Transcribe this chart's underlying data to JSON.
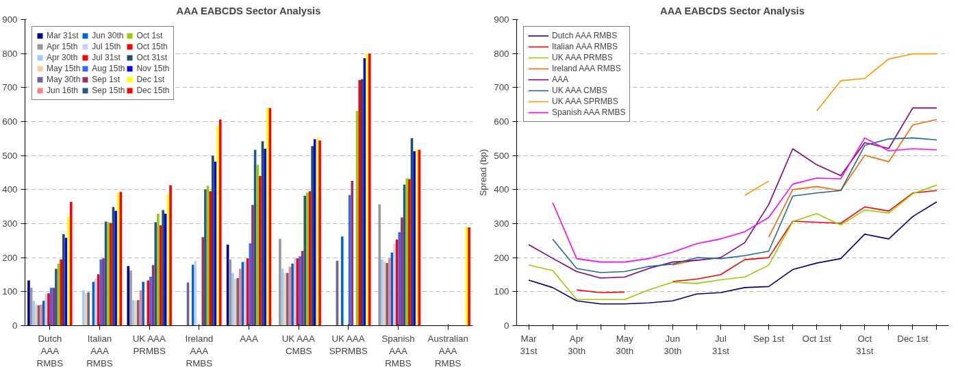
{
  "chart_data": [
    {
      "type": "bar",
      "title": "AAA EABCDS Sector Analysis",
      "categories": [
        "Dutch AAA RMBS",
        "Italian AAA RMBS",
        "UK AAA PRMBS",
        "Ireland AAA RMBS",
        "AAA",
        "UK AAA CMBS",
        "UK AAA SPRMBS",
        "Spanish AAA RMBS",
        "Australian AAA RMBS"
      ],
      "ylim": [
        0,
        900
      ],
      "yticks": [
        0,
        100,
        200,
        300,
        400,
        500,
        600,
        700,
        800,
        900
      ],
      "grid": "y",
      "legend": "top left",
      "series": [
        {
          "name": "Mar 31st",
          "color": "#000080",
          "values": [
            133,
            null,
            175,
            null,
            238,
            null,
            null,
            null,
            null
          ]
        },
        {
          "name": "Apr 15th",
          "color": "#999999",
          "values": [
            111,
            null,
            162,
            null,
            195,
            255,
            null,
            357,
            null
          ]
        },
        {
          "name": "Apr 30th",
          "color": "#99ccff",
          "values": [
            73,
            104,
            75,
            null,
            155,
            167,
            null,
            195,
            null
          ]
        },
        {
          "name": "May 15th",
          "color": "#ffcc99",
          "values": [
            62,
            95,
            73,
            null,
            138,
            155,
            null,
            189,
            null
          ]
        },
        {
          "name": "May 30th",
          "color": "#666699",
          "values": [
            60,
            98,
            75,
            127,
            140,
            155,
            191,
            184,
            null
          ]
        },
        {
          "name": "Jun 16th",
          "color": "#ff8080",
          "values": [
            62,
            null,
            104,
            null,
            167,
            173,
            null,
            198,
            null
          ]
        },
        {
          "name": "Jun 30th",
          "color": "#0066cc",
          "values": [
            73,
            129,
            129,
            179,
            187,
            182,
            262,
            215,
            null
          ]
        },
        {
          "name": "Jul 15th",
          "color": "#ccccff",
          "values": [
            93,
            138,
            null,
            191,
            189,
            198,
            null,
            240,
            null
          ]
        },
        {
          "name": "Jul 31st",
          "color": "#ff0000",
          "values": [
            95,
            151,
            133,
            null,
            198,
            198,
            null,
            253,
            null
          ]
        },
        {
          "name": "Aug 15th",
          "color": "#3366ff",
          "values": [
            111,
            195,
            144,
            null,
            242,
            204,
            384,
            275,
            null
          ]
        },
        {
          "name": "Sep 1st",
          "color": "#993366",
          "values": [
            111,
            198,
            178,
            260,
            355,
            220,
            426,
            318,
            null
          ]
        },
        {
          "name": "Sep 15th",
          "color": "#1f5a8a",
          "values": [
            167,
            306,
            304,
            400,
            517,
            382,
            null,
            415,
            null
          ]
        },
        {
          "name": "Oct 1st",
          "color": "#99cc00",
          "values": [
            182,
            304,
            329,
            411,
            473,
            391,
            631,
            433,
            null
          ]
        },
        {
          "name": "Oct 15th",
          "color": "#ff0000",
          "values": [
            195,
            302,
            295,
            395,
            440,
            395,
            722,
            431,
            null
          ]
        },
        {
          "name": "Oct 31st",
          "color": "#1f4e6e",
          "values": [
            269,
            349,
            340,
            500,
            542,
            528,
            725,
            551,
            null
          ]
        },
        {
          "name": "Nov 15th",
          "color": "#0000ff",
          "values": [
            258,
            338,
            329,
            482,
            520,
            548,
            786,
            513,
            null
          ]
        },
        {
          "name": "Dec 1st",
          "color": "#ffff00",
          "values": [
            320,
            391,
            386,
            588,
            640,
            551,
            800,
            517,
            291
          ]
        },
        {
          "name": "Dec 15th",
          "color": "#ff0000",
          "values": [
            364,
            393,
            413,
            606,
            640,
            544,
            800,
            517,
            289
          ]
        }
      ]
    },
    {
      "type": "line",
      "title": "AAA EABCDS Sector Analysis",
      "ylabel": "Spread (bp)",
      "categories": [
        "Mar 31st",
        null,
        "Apr 30th",
        null,
        "May 30th",
        null,
        "Jun 30th",
        null,
        "Jul 31st",
        null,
        "Sep 1st",
        null,
        "Oct 1st",
        null,
        "Oct 31st",
        null,
        "Dec 1st",
        null
      ],
      "ylim": [
        0,
        900
      ],
      "yticks": [
        0,
        100,
        200,
        300,
        400,
        500,
        600,
        700,
        800,
        900
      ],
      "grid": "y",
      "legend": "top left",
      "line_style": "solid",
      "series": [
        {
          "name": "Dutch AAA RMBS",
          "color": "#000080",
          "values": [
            134,
            112,
            73,
            64,
            64,
            67,
            73,
            93,
            97,
            112,
            115,
            165,
            184,
            197,
            269,
            255,
            321,
            364
          ]
        },
        {
          "name": "Italian AAA RMBS",
          "color": "#ff0000",
          "values": [
            null,
            null,
            105,
            97,
            99,
            null,
            130,
            137,
            150,
            194,
            200,
            307,
            304,
            301,
            349,
            337,
            390,
            397
          ]
        },
        {
          "name": "UK AAA PRMBS",
          "color": "#99cc00",
          "values": [
            178,
            162,
            77,
            77,
            77,
            105,
            128,
            124,
            135,
            143,
            178,
            306,
            329,
            296,
            340,
            331,
            388,
            413
          ]
        },
        {
          "name": "Ireland AAA RMBS",
          "color": "#ff6600",
          "values": [
            null,
            null,
            null,
            null,
            null,
            null,
            178,
            194,
            null,
            null,
            260,
            400,
            409,
            397,
            501,
            482,
            590,
            606
          ]
        },
        {
          "name": "AAA",
          "color": "#800080",
          "values": [
            238,
            198,
            159,
            140,
            143,
            168,
            187,
            192,
            200,
            244,
            356,
            520,
            473,
            441,
            538,
            521,
            640,
            640
          ]
        },
        {
          "name": "UK AAA CMBS",
          "color": "#1f6a8f",
          "values": [
            null,
            254,
            168,
            156,
            159,
            174,
            181,
            200,
            197,
            206,
            219,
            381,
            390,
            397,
            530,
            549,
            552,
            546
          ]
        },
        {
          "name": "UK AAA SPRMBS",
          "color": "#ff9900",
          "values": [
            null,
            null,
            null,
            null,
            null,
            null,
            null,
            null,
            null,
            383,
            425,
            null,
            631,
            720,
            727,
            784,
            799,
            799
          ]
        },
        {
          "name": "Spanish AAA RMBS",
          "color": "#ff00ff",
          "values": [
            null,
            362,
            197,
            187,
            187,
            197,
            216,
            241,
            255,
            276,
            318,
            416,
            434,
            432,
            552,
            514,
            520,
            517
          ]
        }
      ]
    }
  ]
}
